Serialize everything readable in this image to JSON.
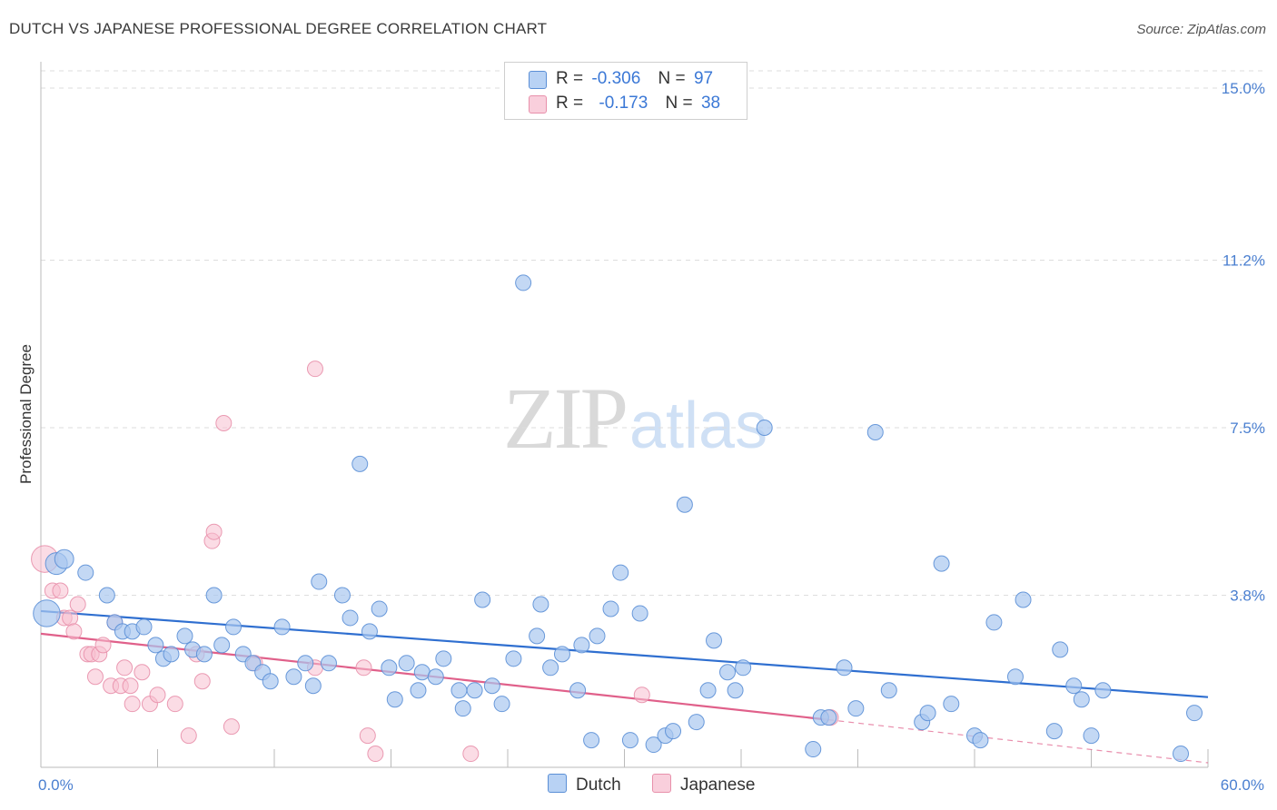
{
  "header": {
    "title": "DUTCH VS JAPANESE PROFESSIONAL DEGREE CORRELATION CHART",
    "source": "Source: ZipAtlas.com"
  },
  "watermark": {
    "zip": "ZIP",
    "atlas": "atlas"
  },
  "legend": {
    "rows": [
      {
        "r_label": "R =",
        "r_value": "-0.306",
        "n_label": "N =",
        "n_value": "97"
      },
      {
        "r_label": "R =",
        "r_value": "-0.173",
        "n_label": "N =",
        "n_value": "38"
      }
    ]
  },
  "bottom_legend": {
    "dutch": "Dutch",
    "japanese": "Japanese"
  },
  "colors": {
    "dutch_fill": "#aac8f0",
    "dutch_stroke": "#5b8fd6",
    "dutch_line": "#2f6fd0",
    "japanese_fill": "#f7bfd0",
    "japanese_stroke": "#e890ab",
    "japanese_line": "#e0608a",
    "axis_label": "#4a7fd0",
    "grid": "#dddddd"
  },
  "chart_data": {
    "type": "scatter",
    "title": "DUTCH VS JAPANESE PROFESSIONAL DEGREE CORRELATION CHART",
    "xlabel": "",
    "ylabel": "Professional Degree",
    "xlim": [
      0,
      60
    ],
    "ylim": [
      0,
      15.5
    ],
    "x_tick_labels": [
      {
        "value": 0,
        "label": "0.0%"
      },
      {
        "value": 60,
        "label": "60.0%"
      }
    ],
    "y_tick_labels": [
      {
        "value": 3.8,
        "label": "3.8%"
      },
      {
        "value": 7.5,
        "label": "7.5%"
      },
      {
        "value": 11.2,
        "label": "11.2%"
      },
      {
        "value": 15.0,
        "label": "15.0%"
      }
    ],
    "series": [
      {
        "name": "Dutch",
        "r": -0.306,
        "n": 97,
        "trend": {
          "x0": 0,
          "y0": 3.45,
          "x1": 60,
          "y1": 1.55
        },
        "points": [
          [
            0.3,
            3.4,
            3
          ],
          [
            0.8,
            4.5,
            2
          ],
          [
            1.2,
            4.6,
            1.5
          ],
          [
            2.3,
            4.3,
            1
          ],
          [
            3.4,
            3.8,
            1
          ],
          [
            3.8,
            3.2,
            1
          ],
          [
            4.2,
            3.0,
            1
          ],
          [
            4.7,
            3.0,
            1
          ],
          [
            5.3,
            3.1,
            1
          ],
          [
            5.9,
            2.7,
            1
          ],
          [
            6.3,
            2.4,
            1
          ],
          [
            6.7,
            2.5,
            1
          ],
          [
            7.4,
            2.9,
            1
          ],
          [
            7.8,
            2.6,
            1
          ],
          [
            8.4,
            2.5,
            1
          ],
          [
            8.9,
            3.8,
            1
          ],
          [
            9.3,
            2.7,
            1
          ],
          [
            9.9,
            3.1,
            1
          ],
          [
            10.4,
            2.5,
            1
          ],
          [
            10.9,
            2.3,
            1
          ],
          [
            11.4,
            2.1,
            1
          ],
          [
            11.8,
            1.9,
            1
          ],
          [
            12.4,
            3.1,
            1
          ],
          [
            13.0,
            2.0,
            1
          ],
          [
            13.6,
            2.3,
            1
          ],
          [
            14.0,
            1.8,
            1
          ],
          [
            14.3,
            4.1,
            1
          ],
          [
            14.8,
            2.3,
            1
          ],
          [
            15.5,
            3.8,
            1
          ],
          [
            15.9,
            3.3,
            1
          ],
          [
            16.4,
            6.7,
            1
          ],
          [
            16.9,
            3.0,
            1
          ],
          [
            17.4,
            3.5,
            1
          ],
          [
            17.9,
            2.2,
            1
          ],
          [
            18.2,
            1.5,
            1
          ],
          [
            18.8,
            2.3,
            1
          ],
          [
            19.4,
            1.7,
            1
          ],
          [
            19.6,
            2.1,
            1
          ],
          [
            20.3,
            2.0,
            1
          ],
          [
            20.7,
            2.4,
            1
          ],
          [
            21.5,
            1.7,
            1
          ],
          [
            21.7,
            1.3,
            1
          ],
          [
            22.3,
            1.7,
            1
          ],
          [
            22.7,
            3.7,
            1
          ],
          [
            23.2,
            1.8,
            1
          ],
          [
            23.7,
            1.4,
            1
          ],
          [
            24.3,
            2.4,
            1
          ],
          [
            24.8,
            10.7,
            1
          ],
          [
            25.5,
            2.9,
            1
          ],
          [
            25.7,
            3.6,
            1
          ],
          [
            26.2,
            2.2,
            1
          ],
          [
            26.8,
            2.5,
            1
          ],
          [
            27.6,
            1.7,
            1
          ],
          [
            27.8,
            2.7,
            1
          ],
          [
            28.3,
            0.6,
            1
          ],
          [
            28.6,
            2.9,
            1
          ],
          [
            29.3,
            3.5,
            1
          ],
          [
            29.8,
            4.3,
            1
          ],
          [
            30.3,
            0.6,
            1
          ],
          [
            30.8,
            3.4,
            1
          ],
          [
            31.5,
            0.5,
            1
          ],
          [
            32.1,
            0.7,
            1
          ],
          [
            32.5,
            0.8,
            1
          ],
          [
            33.1,
            5.8,
            1
          ],
          [
            33.7,
            1.0,
            1
          ],
          [
            34.3,
            1.7,
            1
          ],
          [
            34.6,
            2.8,
            1
          ],
          [
            35.3,
            2.1,
            1
          ],
          [
            35.7,
            1.7,
            1
          ],
          [
            36.1,
            2.2,
            1
          ],
          [
            37.2,
            7.5,
            1
          ],
          [
            39.7,
            0.4,
            1
          ],
          [
            40.1,
            1.1,
            1
          ],
          [
            40.5,
            1.1,
            1
          ],
          [
            41.3,
            2.2,
            1
          ],
          [
            41.9,
            1.3,
            1
          ],
          [
            42.9,
            7.4,
            1
          ],
          [
            43.6,
            1.7,
            1
          ],
          [
            45.3,
            1.0,
            1
          ],
          [
            45.6,
            1.2,
            1
          ],
          [
            46.3,
            4.5,
            1
          ],
          [
            46.8,
            1.4,
            1
          ],
          [
            48.0,
            0.7,
            1
          ],
          [
            48.3,
            0.6,
            1
          ],
          [
            49.0,
            3.2,
            1
          ],
          [
            50.1,
            2.0,
            1
          ],
          [
            50.5,
            3.7,
            1
          ],
          [
            52.1,
            0.8,
            1
          ],
          [
            52.4,
            2.6,
            1
          ],
          [
            53.1,
            1.8,
            1
          ],
          [
            53.5,
            1.5,
            1
          ],
          [
            54.0,
            0.7,
            1
          ],
          [
            54.6,
            1.7,
            1
          ],
          [
            58.6,
            0.3,
            1
          ],
          [
            59.3,
            1.2,
            1
          ]
        ]
      },
      {
        "name": "Japanese",
        "r": -0.173,
        "n": 38,
        "trend": {
          "x0": 0,
          "y0": 2.95,
          "x1": 40.5,
          "y1": 1.05
        },
        "trend_extension": {
          "x0": 40.5,
          "y0": 1.05,
          "x1": 60,
          "y1": 0.1
        },
        "points": [
          [
            0.2,
            4.6,
            3
          ],
          [
            0.6,
            3.9,
            1
          ],
          [
            1.0,
            3.9,
            1
          ],
          [
            1.2,
            3.3,
            1
          ],
          [
            1.5,
            3.3,
            1
          ],
          [
            1.7,
            3.0,
            1
          ],
          [
            1.9,
            3.6,
            1
          ],
          [
            2.4,
            2.5,
            1
          ],
          [
            2.6,
            2.5,
            1
          ],
          [
            2.8,
            2.0,
            1
          ],
          [
            3.0,
            2.5,
            1
          ],
          [
            3.2,
            2.7,
            1
          ],
          [
            3.6,
            1.8,
            1
          ],
          [
            3.8,
            3.2,
            1
          ],
          [
            4.1,
            1.8,
            1
          ],
          [
            4.3,
            2.2,
            1
          ],
          [
            4.6,
            1.8,
            1
          ],
          [
            4.7,
            1.4,
            1
          ],
          [
            5.2,
            2.1,
            1
          ],
          [
            5.6,
            1.4,
            1
          ],
          [
            6.0,
            1.6,
            1
          ],
          [
            6.9,
            1.4,
            1
          ],
          [
            7.6,
            0.7,
            1
          ],
          [
            8.0,
            2.5,
            1
          ],
          [
            8.3,
            1.9,
            1
          ],
          [
            8.8,
            5.0,
            1
          ],
          [
            8.9,
            5.2,
            1
          ],
          [
            9.4,
            7.6,
            1
          ],
          [
            9.8,
            0.9,
            1
          ],
          [
            11.0,
            2.3,
            1
          ],
          [
            14.1,
            2.2,
            1
          ],
          [
            14.1,
            8.8,
            1
          ],
          [
            16.6,
            2.2,
            1
          ],
          [
            16.8,
            0.7,
            1
          ],
          [
            17.2,
            0.3,
            1
          ],
          [
            22.1,
            0.3,
            1
          ],
          [
            30.9,
            1.6,
            1
          ],
          [
            40.6,
            1.1,
            1
          ]
        ]
      }
    ]
  }
}
